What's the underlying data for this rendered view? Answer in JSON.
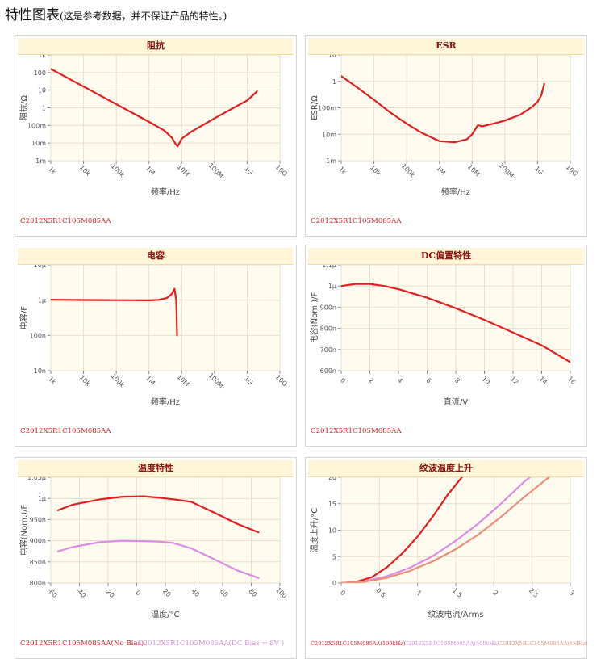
{
  "page": {
    "title": "特性图表",
    "subtitle": "(这是参考数据，并不保证产品的特性。)"
  },
  "colors": {
    "red": "#e02020",
    "violet": "#dd8be4",
    "salmon": "#e8907a",
    "plot_bg": "#fffbee",
    "header_bg": "#fff5d8",
    "header_text": "#8b1010"
  },
  "chart_data": [
    {
      "id": "impedance",
      "type": "line",
      "title": "阻抗",
      "xlabel": "频率/Hz",
      "ylabel": "阻抗/Ω",
      "x_scale": "log",
      "y_scale": "log",
      "xlim": [
        1000,
        10000000000
      ],
      "ylim": [
        0.001,
        1000
      ],
      "x_ticks": [
        {
          "v": 1000,
          "label": "1k"
        },
        {
          "v": 10000,
          "label": "10k"
        },
        {
          "v": 100000,
          "label": "100k"
        },
        {
          "v": 1000000,
          "label": "1M"
        },
        {
          "v": 10000000,
          "label": "10M"
        },
        {
          "v": 100000000,
          "label": "100M"
        },
        {
          "v": 1000000000,
          "label": "1G"
        },
        {
          "v": 10000000000,
          "label": "10G"
        }
      ],
      "y_ticks": [
        {
          "v": 0.001,
          "label": "1m"
        },
        {
          "v": 0.01,
          "label": "10m"
        },
        {
          "v": 0.1,
          "label": "100m"
        },
        {
          "v": 1,
          "label": "1"
        },
        {
          "v": 10,
          "label": "10"
        },
        {
          "v": 100,
          "label": "100"
        },
        {
          "v": 1000,
          "label": "1k"
        }
      ],
      "series": [
        {
          "color": "#e02020",
          "points": [
            [
              1000,
              160
            ],
            [
              10000,
              16
            ],
            [
              100000,
              1.6
            ],
            [
              1000000,
              0.16
            ],
            [
              3000000,
              0.05
            ],
            [
              5000000,
              0.02
            ],
            [
              6500000,
              0.009
            ],
            [
              7500000,
              0.0065
            ],
            [
              10000000,
              0.018
            ],
            [
              20000000,
              0.045
            ],
            [
              100000000,
              0.25
            ],
            [
              1000000000,
              2.6
            ],
            [
              2000000000,
              8.5
            ]
          ]
        }
      ],
      "legend": [
        {
          "text": "C2012X5R1C105M085AA",
          "color": "#e02020"
        }
      ]
    },
    {
      "id": "esr",
      "type": "line",
      "title": "ESR",
      "xlabel": "频率/Hz",
      "ylabel": "ESR/Ω",
      "x_scale": "log",
      "y_scale": "log",
      "xlim": [
        1000,
        10000000000
      ],
      "ylim": [
        0.001,
        10
      ],
      "x_ticks": [
        {
          "v": 1000,
          "label": "1k"
        },
        {
          "v": 10000,
          "label": "10k"
        },
        {
          "v": 100000,
          "label": "100k"
        },
        {
          "v": 1000000,
          "label": "1M"
        },
        {
          "v": 10000000,
          "label": "10M"
        },
        {
          "v": 100000000,
          "label": "100M"
        },
        {
          "v": 1000000000,
          "label": "1G"
        },
        {
          "v": 10000000000,
          "label": "10G"
        }
      ],
      "y_ticks": [
        {
          "v": 0.001,
          "label": "1m"
        },
        {
          "v": 0.01,
          "label": "10m"
        },
        {
          "v": 0.1,
          "label": "100m"
        },
        {
          "v": 1,
          "label": "1"
        },
        {
          "v": 10,
          "label": "10"
        }
      ],
      "series": [
        {
          "color": "#e02020",
          "points": [
            [
              1000,
              1.6
            ],
            [
              3000,
              0.6
            ],
            [
              10000,
              0.2
            ],
            [
              30000,
              0.07
            ],
            [
              100000,
              0.025
            ],
            [
              300000,
              0.011
            ],
            [
              1000000,
              0.0055
            ],
            [
              3000000,
              0.005
            ],
            [
              7000000,
              0.0065
            ],
            [
              10000000,
              0.01
            ],
            [
              15000000,
              0.022
            ],
            [
              20000000,
              0.02
            ],
            [
              50000000,
              0.026
            ],
            [
              100000000,
              0.033
            ],
            [
              300000000,
              0.055
            ],
            [
              700000000,
              0.11
            ],
            [
              1000000000,
              0.17
            ],
            [
              1300000000,
              0.3
            ],
            [
              1600000000,
              0.8
            ]
          ]
        }
      ],
      "legend": [
        {
          "text": "C2012X5R1C105M085AA",
          "color": "#e02020"
        }
      ]
    },
    {
      "id": "capacitance",
      "type": "line",
      "title": "电容",
      "xlabel": "频率/Hz",
      "ylabel": "电容/F",
      "x_scale": "log",
      "y_scale": "log",
      "xlim": [
        1000,
        10000000000
      ],
      "ylim": [
        1e-08,
        1e-05
      ],
      "x_ticks": [
        {
          "v": 1000,
          "label": "1k"
        },
        {
          "v": 10000,
          "label": "10k"
        },
        {
          "v": 100000,
          "label": "100k"
        },
        {
          "v": 1000000,
          "label": "1M"
        },
        {
          "v": 10000000,
          "label": "10M"
        },
        {
          "v": 100000000,
          "label": "100M"
        },
        {
          "v": 1000000000,
          "label": "1G"
        },
        {
          "v": 10000000000,
          "label": "10G"
        }
      ],
      "y_ticks": [
        {
          "v": 1e-08,
          "label": "10n"
        },
        {
          "v": 1e-07,
          "label": "100n"
        },
        {
          "v": 1e-06,
          "label": "1μ"
        },
        {
          "v": 1e-05,
          "label": "10μ"
        }
      ],
      "series": [
        {
          "color": "#e02020",
          "points": [
            [
              1000,
              1.03e-06
            ],
            [
              10000,
              1.01e-06
            ],
            [
              100000,
              1e-06
            ],
            [
              1000000,
              9.9e-07
            ],
            [
              2000000,
              1.02e-06
            ],
            [
              3500000,
              1.15e-06
            ],
            [
              5000000,
              1.5e-06
            ],
            [
              6000000,
              2.1e-06
            ],
            [
              6800000,
              1e-06
            ],
            [
              7200000,
              1e-07
            ]
          ]
        }
      ],
      "legend": [
        {
          "text": "C2012X5R1C105M085AA",
          "color": "#e02020"
        }
      ]
    },
    {
      "id": "dc_bias",
      "type": "line",
      "title": "DC偏置特性",
      "xlabel": "直流/V",
      "ylabel": "电容(Nom.)/F",
      "x_scale": "linear",
      "y_scale": "linear",
      "xlim": [
        0,
        16
      ],
      "ylim": [
        6e-07,
        1.1e-06
      ],
      "x_ticks": [
        {
          "v": 0,
          "label": "0"
        },
        {
          "v": 2,
          "label": "2"
        },
        {
          "v": 4,
          "label": "4"
        },
        {
          "v": 6,
          "label": "6"
        },
        {
          "v": 8,
          "label": "8"
        },
        {
          "v": 10,
          "label": "10"
        },
        {
          "v": 12,
          "label": "12"
        },
        {
          "v": 14,
          "label": "14"
        },
        {
          "v": 16,
          "label": "16"
        }
      ],
      "y_ticks": [
        {
          "v": 6e-07,
          "label": "600n"
        },
        {
          "v": 7e-07,
          "label": "700n"
        },
        {
          "v": 8e-07,
          "label": "800n"
        },
        {
          "v": 9e-07,
          "label": "900n"
        },
        {
          "v": 1e-06,
          "label": "1μ"
        },
        {
          "v": 1.1e-06,
          "label": "1.1μ"
        }
      ],
      "series": [
        {
          "color": "#e02020",
          "points": [
            [
              0,
              1e-06
            ],
            [
              1,
              1.01e-06
            ],
            [
              2,
              1.01e-06
            ],
            [
              3,
              1e-06
            ],
            [
              4,
              9.85e-07
            ],
            [
              5,
              9.65e-07
            ],
            [
              6,
              9.45e-07
            ],
            [
              7,
              9.2e-07
            ],
            [
              8,
              8.95e-07
            ],
            [
              10,
              8.4e-07
            ],
            [
              12,
              7.8e-07
            ],
            [
              14,
              7.2e-07
            ],
            [
              16,
              6.4e-07
            ]
          ]
        }
      ],
      "legend": [
        {
          "text": "C2012X5R1C105M085AA",
          "color": "#e02020"
        }
      ]
    },
    {
      "id": "temperature",
      "type": "line",
      "title": "温度特性",
      "xlabel": "温度/°C",
      "ylabel": "电容(Nom.)/F",
      "x_scale": "linear",
      "y_scale": "linear",
      "xlim": [
        -60,
        100
      ],
      "ylim": [
        8e-07,
        1.05e-06
      ],
      "x_ticks": [
        {
          "v": -60,
          "label": "-60"
        },
        {
          "v": -40,
          "label": "-40"
        },
        {
          "v": -20,
          "label": "-20"
        },
        {
          "v": 0,
          "label": "0"
        },
        {
          "v": 20,
          "label": "20"
        },
        {
          "v": 40,
          "label": "40"
        },
        {
          "v": 60,
          "label": "60"
        },
        {
          "v": 80,
          "label": "80"
        },
        {
          "v": 100,
          "label": "100"
        }
      ],
      "y_ticks": [
        {
          "v": 8e-07,
          "label": "800n"
        },
        {
          "v": 8.5e-07,
          "label": "850n"
        },
        {
          "v": 9e-07,
          "label": "900n"
        },
        {
          "v": 9.5e-07,
          "label": "950n"
        },
        {
          "v": 1e-06,
          "label": "1μ"
        },
        {
          "v": 1.05e-06,
          "label": "1.05μ"
        }
      ],
      "series": [
        {
          "color": "#e02020",
          "points": [
            [
              -55,
              9.72e-07
            ],
            [
              -45,
              9.85e-07
            ],
            [
              -25,
              9.98e-07
            ],
            [
              -10,
              1.004e-06
            ],
            [
              5,
              1.005e-06
            ],
            [
              15,
              1.002e-06
            ],
            [
              25,
              9.98e-07
            ],
            [
              38,
              9.92e-07
            ],
            [
              55,
              9.65e-07
            ],
            [
              70,
              9.4e-07
            ],
            [
              85,
              9.2e-07
            ]
          ]
        },
        {
          "color": "#dd8be4",
          "points": [
            [
              -55,
              8.75e-07
            ],
            [
              -45,
              8.85e-07
            ],
            [
              -25,
              8.97e-07
            ],
            [
              -10,
              9e-07
            ],
            [
              5,
              8.99e-07
            ],
            [
              15,
              8.98e-07
            ],
            [
              25,
              8.95e-07
            ],
            [
              38,
              8.82e-07
            ],
            [
              55,
              8.55e-07
            ],
            [
              70,
              8.3e-07
            ],
            [
              85,
              8.12e-07
            ]
          ]
        }
      ],
      "legend": [
        {
          "text": "C2012X5R1C105M085AA(No Bias)",
          "color": "#e02020"
        },
        {
          "text": "C2012X5R1C105M085AA(DC Bias = 8V )",
          "color": "#dd8be4"
        }
      ]
    },
    {
      "id": "ripple",
      "type": "line",
      "title": "纹波温度上升",
      "xlabel": "纹波电流/Arms",
      "ylabel": "温度上升/°C",
      "x_scale": "linear",
      "y_scale": "linear",
      "xlim": [
        0,
        3
      ],
      "ylim": [
        0,
        20
      ],
      "x_ticks": [
        {
          "v": 0,
          "label": "0"
        },
        {
          "v": 0.5,
          "label": "0.5"
        },
        {
          "v": 1,
          "label": "1"
        },
        {
          "v": 1.5,
          "label": "1.5"
        },
        {
          "v": 2,
          "label": "2"
        },
        {
          "v": 2.5,
          "label": "2.5"
        },
        {
          "v": 3,
          "label": "3"
        }
      ],
      "y_ticks": [
        {
          "v": 0,
          "label": "0"
        },
        {
          "v": 5,
          "label": "5"
        },
        {
          "v": 10,
          "label": "10"
        },
        {
          "v": 15,
          "label": "15"
        },
        {
          "v": 20,
          "label": "20"
        }
      ],
      "series": [
        {
          "color": "#e02020",
          "points": [
            [
              0,
              0
            ],
            [
              0.2,
              0.25
            ],
            [
              0.4,
              1.1
            ],
            [
              0.6,
              3.0
            ],
            [
              0.8,
              5.6
            ],
            [
              1.0,
              8.8
            ],
            [
              1.2,
              12.6
            ],
            [
              1.4,
              16.8
            ],
            [
              1.58,
              20
            ]
          ]
        },
        {
          "color": "#dd8be4",
          "points": [
            [
              0,
              0
            ],
            [
              0.3,
              0.3
            ],
            [
              0.6,
              1.3
            ],
            [
              0.9,
              2.9
            ],
            [
              1.2,
              5.1
            ],
            [
              1.5,
              8.0
            ],
            [
              1.8,
              11.3
            ],
            [
              2.1,
              15.1
            ],
            [
              2.4,
              19.2
            ],
            [
              2.47,
              20
            ]
          ]
        },
        {
          "color": "#e8907a",
          "points": [
            [
              0,
              0
            ],
            [
              0.3,
              0.25
            ],
            [
              0.6,
              1.0
            ],
            [
              0.9,
              2.3
            ],
            [
              1.2,
              4.1
            ],
            [
              1.5,
              6.4
            ],
            [
              1.8,
              9.2
            ],
            [
              2.1,
              12.6
            ],
            [
              2.4,
              16.3
            ],
            [
              2.72,
              20
            ]
          ]
        }
      ],
      "legend": [
        {
          "text": "C2012X5R1C105M085AA(100kHz)",
          "color": "#e02020"
        },
        {
          "text": "C2012X5R1C105M085AA(500kHz)",
          "color": "#dd8be4"
        },
        {
          "text": "C2012X5R1C105M085AA(1MHz)",
          "color": "#e8907a"
        }
      ]
    }
  ]
}
